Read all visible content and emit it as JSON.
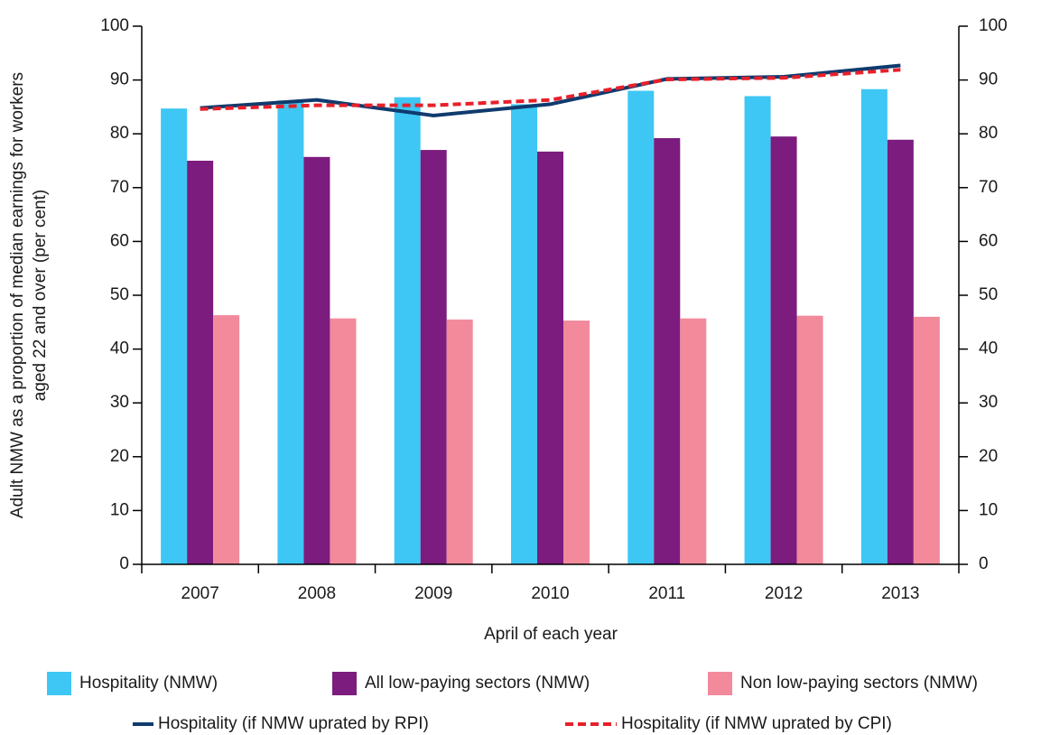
{
  "chart_data": {
    "type": "bar",
    "ylabel": [
      "Adult NMW as a proportion of median earnings for workers",
      "aged 22 and over (per cent)"
    ],
    "xlabel": "April of each year",
    "categories": [
      "2007",
      "2008",
      "2009",
      "2010",
      "2011",
      "2012",
      "2013"
    ],
    "series": [
      {
        "name": "Hospitality (NMW)",
        "type": "bar",
        "color": "#3ec7f4",
        "values": [
          84.7,
          86.2,
          86.8,
          85.5,
          88.0,
          87.0,
          88.3
        ]
      },
      {
        "name": "All low-paying sectors (NMW)",
        "type": "bar",
        "color": "#7b1c7e",
        "values": [
          75.0,
          75.7,
          77.0,
          76.7,
          79.2,
          79.5,
          78.9
        ]
      },
      {
        "name": "Non low-paying sectors (NMW)",
        "type": "bar",
        "color": "#f28a9c",
        "values": [
          46.3,
          45.7,
          45.5,
          45.3,
          45.7,
          46.2,
          46.0
        ]
      },
      {
        "name": "Hospitality (if NMW uprated by RPI)",
        "type": "line",
        "axis": "y2",
        "color": "#0f3b6e",
        "dashed": false,
        "values": [
          84.8,
          86.3,
          83.4,
          85.5,
          90.2,
          90.6,
          92.7
        ]
      },
      {
        "name": "Hospitality (if NMW uprated by CPI)",
        "type": "line",
        "axis": "y2",
        "color": "#e8202a",
        "dashed": true,
        "values": [
          84.6,
          85.3,
          85.3,
          86.3,
          90.1,
          90.4,
          91.9
        ]
      }
    ],
    "ylim": [
      0,
      100
    ],
    "yticks": [
      0,
      10,
      20,
      30,
      40,
      50,
      60,
      70,
      80,
      90,
      100
    ],
    "y2lim": [
      0,
      100
    ],
    "y2ticks": [
      0,
      10,
      20,
      30,
      40,
      50,
      60,
      70,
      80,
      90,
      100
    ],
    "grid": false
  }
}
